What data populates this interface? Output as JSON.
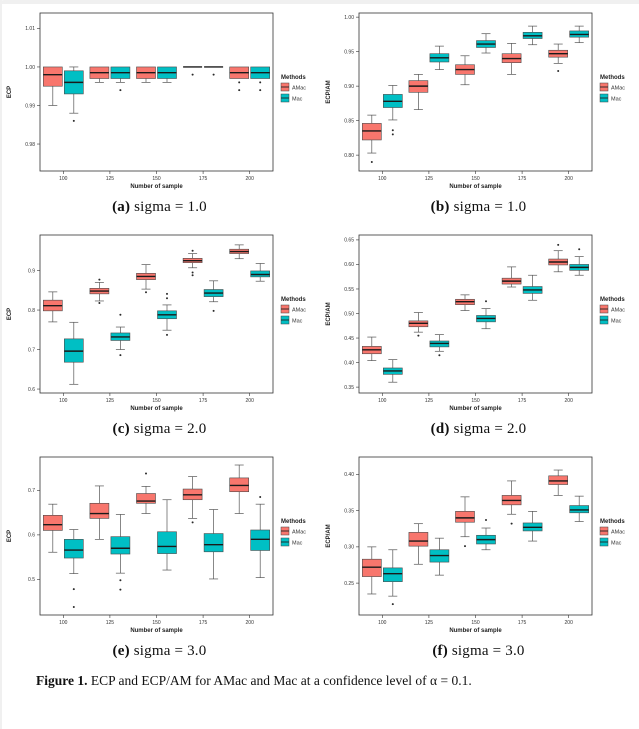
{
  "figure": {
    "caption_label": "Figure 1.",
    "caption_text": "ECP and ECP/AM for AMac and Mac at a confidence level of α = 0.1."
  },
  "legend": {
    "title": "Methods",
    "items": [
      {
        "label": "AMac",
        "color": "#F8766D"
      },
      {
        "label": "Mac",
        "color": "#00BFC4"
      }
    ]
  },
  "chart_data": [
    {
      "id": "a",
      "panel_label": "(a)",
      "subtitle": "sigma = 1.0",
      "type": "boxplot",
      "xlabel": "Number of sample",
      "ylabel": "ECP",
      "categories": [
        "100",
        "125",
        "150",
        "175",
        "200"
      ],
      "ylim": [
        0.973,
        1.014
      ],
      "yticks": [
        {
          "value": 0.98,
          "label": "0.98"
        },
        {
          "value": 0.99,
          "label": "0.99"
        },
        {
          "value": 1.0,
          "label": "1.00"
        },
        {
          "value": 1.01,
          "label": "1.01"
        }
      ],
      "legend_title": "Methods",
      "series": [
        {
          "name": "AMac",
          "color": "#F8766D",
          "boxes": [
            {
              "low": 0.99,
              "q1": 0.995,
              "med": 0.998,
              "q3": 1.0,
              "high": 1.0,
              "outliers": []
            },
            {
              "low": 0.996,
              "q1": 0.997,
              "med": 0.9985,
              "q3": 1.0,
              "high": 1.0,
              "outliers": []
            },
            {
              "low": 0.996,
              "q1": 0.997,
              "med": 0.9985,
              "q3": 1.0,
              "high": 1.0,
              "outliers": []
            },
            {
              "low": 1.0,
              "q1": 1.0,
              "med": 1.0,
              "q3": 1.0,
              "high": 1.0,
              "outliers": [
                0.998
              ]
            },
            {
              "low": 0.997,
              "q1": 0.997,
              "med": 0.9985,
              "q3": 1.0,
              "high": 1.0,
              "outliers": [
                0.996,
                0.994
              ]
            }
          ]
        },
        {
          "name": "Mac",
          "color": "#00BFC4",
          "boxes": [
            {
              "low": 0.988,
              "q1": 0.993,
              "med": 0.996,
              "q3": 0.999,
              "high": 1.0,
              "outliers": [
                0.986
              ]
            },
            {
              "low": 0.996,
              "q1": 0.997,
              "med": 0.9985,
              "q3": 1.0,
              "high": 1.0,
              "outliers": [
                0.994
              ]
            },
            {
              "low": 0.996,
              "q1": 0.997,
              "med": 0.9985,
              "q3": 1.0,
              "high": 1.0,
              "outliers": []
            },
            {
              "low": 1.0,
              "q1": 1.0,
              "med": 1.0,
              "q3": 1.0,
              "high": 1.0,
              "outliers": [
                0.998
              ]
            },
            {
              "low": 0.997,
              "q1": 0.997,
              "med": 0.9985,
              "q3": 1.0,
              "high": 1.0,
              "outliers": [
                0.996,
                0.994
              ]
            }
          ]
        }
      ]
    },
    {
      "id": "b",
      "panel_label": "(b)",
      "subtitle": "sigma = 1.0",
      "type": "boxplot",
      "xlabel": "Number of sample",
      "ylabel": "ECP/AM",
      "categories": [
        "100",
        "125",
        "150",
        "175",
        "200"
      ],
      "ylim": [
        0.777,
        1.006
      ],
      "yticks": [
        {
          "value": 0.8,
          "label": "0.80"
        },
        {
          "value": 0.85,
          "label": "0.85"
        },
        {
          "value": 0.9,
          "label": "0.90"
        },
        {
          "value": 0.95,
          "label": "0.95"
        },
        {
          "value": 1.0,
          "label": "1.00"
        }
      ],
      "legend_title": "Methods",
      "series": [
        {
          "name": "AMac",
          "color": "#F8766D",
          "boxes": [
            {
              "low": 0.803,
              "q1": 0.822,
              "med": 0.835,
              "q3": 0.846,
              "high": 0.858,
              "outliers": [
                0.79
              ]
            },
            {
              "low": 0.866,
              "q1": 0.891,
              "med": 0.9,
              "q3": 0.908,
              "high": 0.917,
              "outliers": []
            },
            {
              "low": 0.902,
              "q1": 0.917,
              "med": 0.924,
              "q3": 0.931,
              "high": 0.944,
              "outliers": []
            },
            {
              "low": 0.917,
              "q1": 0.934,
              "med": 0.94,
              "q3": 0.947,
              "high": 0.962,
              "outliers": []
            },
            {
              "low": 0.933,
              "q1": 0.942,
              "med": 0.947,
              "q3": 0.952,
              "high": 0.961,
              "outliers": [
                0.922
              ]
            }
          ]
        },
        {
          "name": "Mac",
          "color": "#00BFC4",
          "boxes": [
            {
              "low": 0.851,
              "q1": 0.869,
              "med": 0.878,
              "q3": 0.888,
              "high": 0.901,
              "outliers": [
                0.836,
                0.83
              ]
            },
            {
              "low": 0.924,
              "q1": 0.935,
              "med": 0.941,
              "q3": 0.947,
              "high": 0.958,
              "outliers": []
            },
            {
              "low": 0.948,
              "q1": 0.956,
              "med": 0.961,
              "q3": 0.966,
              "high": 0.976,
              "outliers": []
            },
            {
              "low": 0.96,
              "q1": 0.969,
              "med": 0.973,
              "q3": 0.978,
              "high": 0.987,
              "outliers": []
            },
            {
              "low": 0.963,
              "q1": 0.971,
              "med": 0.975,
              "q3": 0.98,
              "high": 0.987,
              "outliers": []
            }
          ]
        }
      ]
    },
    {
      "id": "c",
      "panel_label": "(c)",
      "subtitle": "sigma = 2.0",
      "type": "boxplot",
      "xlabel": "Number of sample",
      "ylabel": "ECP",
      "categories": [
        "100",
        "125",
        "150",
        "175",
        "200"
      ],
      "ylim": [
        0.59,
        0.99
      ],
      "yticks": [
        {
          "value": 0.6,
          "label": "0.6"
        },
        {
          "value": 0.7,
          "label": "0.7"
        },
        {
          "value": 0.8,
          "label": "0.8"
        },
        {
          "value": 0.9,
          "label": "0.9"
        }
      ],
      "legend_title": "Methods",
      "series": [
        {
          "name": "AMac",
          "color": "#F8766D",
          "boxes": [
            {
              "low": 0.77,
              "q1": 0.798,
              "med": 0.811,
              "q3": 0.825,
              "high": 0.846,
              "outliers": []
            },
            {
              "low": 0.823,
              "q1": 0.841,
              "med": 0.848,
              "q3": 0.855,
              "high": 0.87,
              "outliers": [
                0.877,
                0.818
              ]
            },
            {
              "low": 0.853,
              "q1": 0.877,
              "med": 0.885,
              "q3": 0.893,
              "high": 0.915,
              "outliers": [
                0.845
              ]
            },
            {
              "low": 0.907,
              "q1": 0.92,
              "med": 0.925,
              "q3": 0.931,
              "high": 0.943,
              "outliers": [
                0.95,
                0.895,
                0.888
              ]
            },
            {
              "low": 0.93,
              "q1": 0.943,
              "med": 0.948,
              "q3": 0.954,
              "high": 0.965,
              "outliers": []
            }
          ]
        },
        {
          "name": "Mac",
          "color": "#00BFC4",
          "boxes": [
            {
              "low": 0.612,
              "q1": 0.668,
              "med": 0.696,
              "q3": 0.727,
              "high": 0.769,
              "outliers": []
            },
            {
              "low": 0.7,
              "q1": 0.723,
              "med": 0.732,
              "q3": 0.742,
              "high": 0.757,
              "outliers": [
                0.788,
                0.686
              ]
            },
            {
              "low": 0.749,
              "q1": 0.778,
              "med": 0.788,
              "q3": 0.798,
              "high": 0.813,
              "outliers": [
                0.841,
                0.83,
                0.737
              ]
            },
            {
              "low": 0.821,
              "q1": 0.834,
              "med": 0.843,
              "q3": 0.852,
              "high": 0.874,
              "outliers": [
                0.798
              ]
            },
            {
              "low": 0.873,
              "q1": 0.884,
              "med": 0.89,
              "q3": 0.899,
              "high": 0.918,
              "outliers": []
            }
          ]
        }
      ]
    },
    {
      "id": "d",
      "panel_label": "(d)",
      "subtitle": "sigma = 2.0",
      "type": "boxplot",
      "xlabel": "Number of sample",
      "ylabel": "ECP/AM",
      "categories": [
        "100",
        "125",
        "150",
        "175",
        "200"
      ],
      "ylim": [
        0.338,
        0.66
      ],
      "yticks": [
        {
          "value": 0.35,
          "label": "0.35"
        },
        {
          "value": 0.4,
          "label": "0.40"
        },
        {
          "value": 0.45,
          "label": "0.45"
        },
        {
          "value": 0.5,
          "label": "0.50"
        },
        {
          "value": 0.55,
          "label": "0.55"
        },
        {
          "value": 0.6,
          "label": "0.60"
        },
        {
          "value": 0.65,
          "label": "0.65"
        }
      ],
      "legend_title": "Methods",
      "series": [
        {
          "name": "AMac",
          "color": "#F8766D",
          "boxes": [
            {
              "low": 0.404,
              "q1": 0.418,
              "med": 0.426,
              "q3": 0.433,
              "high": 0.452,
              "outliers": []
            },
            {
              "low": 0.462,
              "q1": 0.473,
              "med": 0.48,
              "q3": 0.485,
              "high": 0.502,
              "outliers": [
                0.455
              ]
            },
            {
              "low": 0.506,
              "q1": 0.518,
              "med": 0.524,
              "q3": 0.529,
              "high": 0.538,
              "outliers": []
            },
            {
              "low": 0.554,
              "q1": 0.56,
              "med": 0.566,
              "q3": 0.572,
              "high": 0.595,
              "outliers": []
            },
            {
              "low": 0.585,
              "q1": 0.599,
              "med": 0.605,
              "q3": 0.611,
              "high": 0.628,
              "outliers": [
                0.64
              ]
            }
          ]
        },
        {
          "name": "Mac",
          "color": "#00BFC4",
          "boxes": [
            {
              "low": 0.36,
              "q1": 0.376,
              "med": 0.383,
              "q3": 0.389,
              "high": 0.406,
              "outliers": []
            },
            {
              "low": 0.423,
              "q1": 0.432,
              "med": 0.439,
              "q3": 0.444,
              "high": 0.457,
              "outliers": [
                0.415
              ]
            },
            {
              "low": 0.469,
              "q1": 0.483,
              "med": 0.49,
              "q3": 0.496,
              "high": 0.51,
              "outliers": [
                0.525
              ]
            },
            {
              "low": 0.527,
              "q1": 0.541,
              "med": 0.548,
              "q3": 0.555,
              "high": 0.578,
              "outliers": []
            },
            {
              "low": 0.578,
              "q1": 0.588,
              "med": 0.594,
              "q3": 0.6,
              "high": 0.616,
              "outliers": [
                0.631
              ]
            }
          ]
        }
      ]
    },
    {
      "id": "e",
      "panel_label": "(e)",
      "subtitle": "sigma = 3.0",
      "type": "boxplot",
      "xlabel": "Number of sample",
      "ylabel": "ECP",
      "categories": [
        "100",
        "125",
        "150",
        "175",
        "200"
      ],
      "ylim": [
        0.42,
        0.775
      ],
      "yticks": [
        {
          "value": 0.5,
          "label": "0.5"
        },
        {
          "value": 0.6,
          "label": "0.6"
        },
        {
          "value": 0.7,
          "label": "0.7"
        }
      ],
      "legend_title": "Methods",
      "series": [
        {
          "name": "AMac",
          "color": "#F8766D",
          "boxes": [
            {
              "low": 0.561,
              "q1": 0.61,
              "med": 0.623,
              "q3": 0.644,
              "high": 0.669,
              "outliers": []
            },
            {
              "low": 0.59,
              "q1": 0.637,
              "med": 0.648,
              "q3": 0.671,
              "high": 0.71,
              "outliers": []
            },
            {
              "low": 0.648,
              "q1": 0.671,
              "med": 0.676,
              "q3": 0.693,
              "high": 0.709,
              "outliers": [
                0.738
              ]
            },
            {
              "low": 0.637,
              "q1": 0.679,
              "med": 0.69,
              "q3": 0.703,
              "high": 0.731,
              "outliers": [
                0.628
              ]
            },
            {
              "low": 0.648,
              "q1": 0.697,
              "med": 0.711,
              "q3": 0.728,
              "high": 0.757,
              "outliers": []
            }
          ]
        },
        {
          "name": "Mac",
          "color": "#00BFC4",
          "boxes": [
            {
              "low": 0.513,
              "q1": 0.548,
              "med": 0.566,
              "q3": 0.59,
              "high": 0.612,
              "outliers": [
                0.478,
                0.438
              ]
            },
            {
              "low": 0.514,
              "q1": 0.557,
              "med": 0.57,
              "q3": 0.596,
              "high": 0.646,
              "outliers": [
                0.498,
                0.477
              ]
            },
            {
              "low": 0.521,
              "q1": 0.558,
              "med": 0.574,
              "q3": 0.607,
              "high": 0.679,
              "outliers": []
            },
            {
              "low": 0.501,
              "q1": 0.562,
              "med": 0.578,
              "q3": 0.603,
              "high": 0.657,
              "outliers": []
            },
            {
              "low": 0.504,
              "q1": 0.565,
              "med": 0.59,
              "q3": 0.611,
              "high": 0.669,
              "outliers": [
                0.685
              ]
            }
          ]
        }
      ]
    },
    {
      "id": "f",
      "panel_label": "(f)",
      "subtitle": "sigma = 3.0",
      "type": "boxplot",
      "xlabel": "Number of sample",
      "ylabel": "ECP/AM",
      "categories": [
        "100",
        "125",
        "150",
        "175",
        "200"
      ],
      "ylim": [
        0.206,
        0.424
      ],
      "yticks": [
        {
          "value": 0.25,
          "label": "0.25"
        },
        {
          "value": 0.3,
          "label": "0.30"
        },
        {
          "value": 0.35,
          "label": "0.35"
        },
        {
          "value": 0.4,
          "label": "0.40"
        }
      ],
      "legend_title": "Methods",
      "series": [
        {
          "name": "AMac",
          "color": "#F8766D",
          "boxes": [
            {
              "low": 0.235,
              "q1": 0.259,
              "med": 0.272,
              "q3": 0.283,
              "high": 0.3,
              "outliers": []
            },
            {
              "low": 0.276,
              "q1": 0.301,
              "med": 0.308,
              "q3": 0.32,
              "high": 0.332,
              "outliers": []
            },
            {
              "low": 0.314,
              "q1": 0.334,
              "med": 0.34,
              "q3": 0.349,
              "high": 0.369,
              "outliers": [
                0.301
              ]
            },
            {
              "low": 0.345,
              "q1": 0.358,
              "med": 0.364,
              "q3": 0.371,
              "high": 0.391,
              "outliers": [
                0.332
              ]
            },
            {
              "low": 0.371,
              "q1": 0.386,
              "med": 0.391,
              "q3": 0.398,
              "high": 0.406,
              "outliers": []
            }
          ]
        },
        {
          "name": "Mac",
          "color": "#00BFC4",
          "boxes": [
            {
              "low": 0.232,
              "q1": 0.252,
              "med": 0.263,
              "q3": 0.271,
              "high": 0.296,
              "outliers": [
                0.221
              ]
            },
            {
              "low": 0.261,
              "q1": 0.279,
              "med": 0.288,
              "q3": 0.296,
              "high": 0.312,
              "outliers": []
            },
            {
              "low": 0.296,
              "q1": 0.304,
              "med": 0.31,
              "q3": 0.316,
              "high": 0.326,
              "outliers": [
                0.337
              ]
            },
            {
              "low": 0.308,
              "q1": 0.322,
              "med": 0.327,
              "q3": 0.333,
              "high": 0.349,
              "outliers": []
            },
            {
              "low": 0.335,
              "q1": 0.347,
              "med": 0.351,
              "q3": 0.357,
              "high": 0.37,
              "outliers": []
            }
          ]
        }
      ]
    }
  ]
}
